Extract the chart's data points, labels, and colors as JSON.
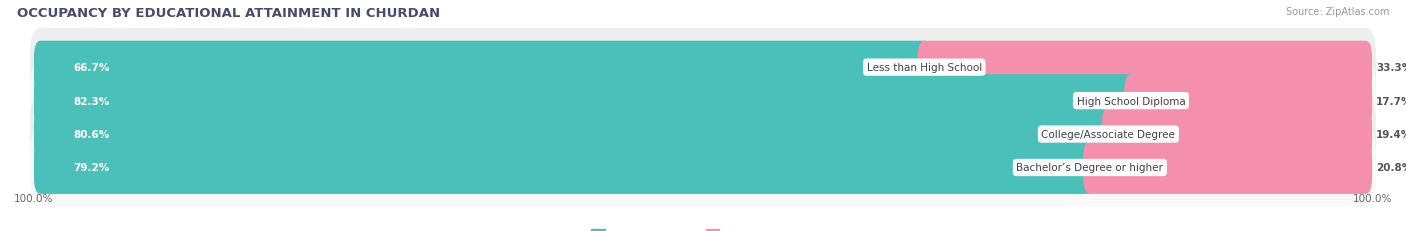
{
  "title": "OCCUPANCY BY EDUCATIONAL ATTAINMENT IN CHURDAN",
  "source": "Source: ZipAtlas.com",
  "categories": [
    "Less than High School",
    "High School Diploma",
    "College/Associate Degree",
    "Bachelor’s Degree or higher"
  ],
  "owner_values": [
    66.7,
    82.3,
    80.6,
    79.2
  ],
  "renter_values": [
    33.3,
    17.7,
    19.4,
    20.8
  ],
  "owner_color": "#4BBFBA",
  "renter_color": "#F48FAE",
  "row_bg_color": "#E4E4E4",
  "row_bg_colors": [
    "#EEEEEE",
    "#F8F8F8",
    "#EEEEEE",
    "#F8F8F8"
  ],
  "title_fontsize": 9.5,
  "label_fontsize": 7.5,
  "pct_fontsize": 7.5,
  "tick_fontsize": 7.5,
  "legend_fontsize": 8,
  "x_axis_label_left": "100.0%",
  "x_axis_label_right": "100.0%",
  "figsize": [
    14.06,
    2.32
  ],
  "dpi": 100
}
